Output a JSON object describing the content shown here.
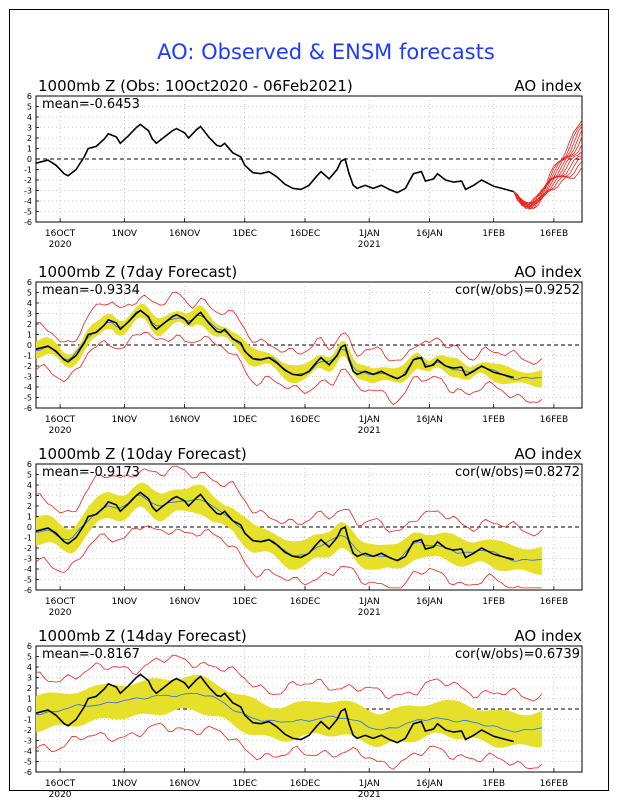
{
  "title": "AO: Observed & ENSM forecasts",
  "colors": {
    "title": "#1e3cff",
    "observed": "#000000",
    "ensemble_mean": "#1e6cff",
    "spread": "#e6e02a",
    "range": "#e8231e",
    "zero_line": "#000000"
  },
  "x_ticks": [
    {
      "label": "16OCT",
      "sub": "2020",
      "day": 6
    },
    {
      "label": "1NOV",
      "sub": "",
      "day": 22
    },
    {
      "label": "16NOV",
      "sub": "",
      "day": 37
    },
    {
      "label": "1DEC",
      "sub": "",
      "day": 52
    },
    {
      "label": "16DEC",
      "sub": "",
      "day": 67
    },
    {
      "label": "1JAN",
      "sub": "2021",
      "day": 83
    },
    {
      "label": "16JAN",
      "sub": "",
      "day": 98
    },
    {
      "label": "1FEB",
      "sub": "",
      "day": 114
    },
    {
      "label": "16FEB",
      "sub": "",
      "day": 129
    }
  ],
  "chart_data": [
    {
      "type": "line",
      "title": "1000mb Z (Obs: 10Oct2020 - 06Feb2021)",
      "right_label": "AO index",
      "stat_left": "mean=-0.6453",
      "stat_right": "",
      "ylim": [
        -6,
        6
      ],
      "grid": "on",
      "x_unit": "days since 10Oct2020",
      "observed": [
        [
          0,
          -0.4
        ],
        [
          3,
          -0.1
        ],
        [
          5,
          -0.6
        ],
        [
          7,
          -1.4
        ],
        [
          8,
          -1.6
        ],
        [
          10,
          -1.0
        ],
        [
          12,
          0.2
        ],
        [
          13,
          1.0
        ],
        [
          15,
          1.2
        ],
        [
          17,
          1.9
        ],
        [
          18,
          2.4
        ],
        [
          20,
          2.1
        ],
        [
          21,
          1.5
        ],
        [
          23,
          2.2
        ],
        [
          25,
          3.0
        ],
        [
          26,
          3.3
        ],
        [
          28,
          2.7
        ],
        [
          29,
          1.9
        ],
        [
          30,
          1.5
        ],
        [
          32,
          2.1
        ],
        [
          34,
          2.7
        ],
        [
          35,
          2.9
        ],
        [
          37,
          2.5
        ],
        [
          38,
          2.0
        ],
        [
          40,
          2.8
        ],
        [
          41,
          3.1
        ],
        [
          43,
          2.1
        ],
        [
          45,
          1.3
        ],
        [
          46,
          1.2
        ],
        [
          47,
          1.5
        ],
        [
          49,
          0.6
        ],
        [
          51,
          0.2
        ],
        [
          52,
          -0.6
        ],
        [
          54,
          -1.3
        ],
        [
          56,
          -1.4
        ],
        [
          58,
          -1.2
        ],
        [
          60,
          -1.7
        ],
        [
          62,
          -2.4
        ],
        [
          64,
          -2.8
        ],
        [
          66,
          -2.9
        ],
        [
          68,
          -2.5
        ],
        [
          70,
          -1.6
        ],
        [
          71,
          -1.2
        ],
        [
          73,
          -1.9
        ],
        [
          75,
          -1.0
        ],
        [
          76,
          -0.2
        ],
        [
          77,
          0.0
        ],
        [
          78,
          -1.4
        ],
        [
          79,
          -2.5
        ],
        [
          80,
          -2.8
        ],
        [
          82,
          -2.5
        ],
        [
          84,
          -2.8
        ],
        [
          86,
          -2.5
        ],
        [
          88,
          -2.9
        ],
        [
          90,
          -3.2
        ],
        [
          92,
          -2.8
        ],
        [
          94,
          -1.4
        ],
        [
          96,
          -1.2
        ],
        [
          97,
          -2.1
        ],
        [
          99,
          -1.9
        ],
        [
          100,
          -1.4
        ],
        [
          102,
          -2.0
        ],
        [
          104,
          -2.2
        ],
        [
          106,
          -2.1
        ],
        [
          107,
          -2.9
        ],
        [
          109,
          -2.5
        ],
        [
          111,
          -2.0
        ],
        [
          112,
          -2.2
        ],
        [
          114,
          -2.6
        ],
        [
          117,
          -2.9
        ],
        [
          119,
          -3.1
        ]
      ],
      "forecast_members_start_day": 119
    },
    {
      "type": "line",
      "title": "1000mb Z (7day Forecast)",
      "right_label": "AO index",
      "stat_left": "mean=-0.9334",
      "stat_right": "cor(w/obs)=0.9252",
      "ylim": [
        -6,
        6
      ],
      "grid": "on"
    },
    {
      "type": "line",
      "title": "1000mb Z (10day Forecast)",
      "right_label": "AO index",
      "stat_left": "mean=-0.9173",
      "stat_right": "cor(w/obs)=0.8272",
      "ylim": [
        -6,
        6
      ],
      "grid": "on"
    },
    {
      "type": "line",
      "title": "1000mb Z (14day Forecast)",
      "right_label": "AO index",
      "stat_left": "mean=-0.8167",
      "stat_right": "cor(w/obs)=0.6739",
      "ylim": [
        -6,
        6
      ],
      "grid": "on"
    }
  ]
}
